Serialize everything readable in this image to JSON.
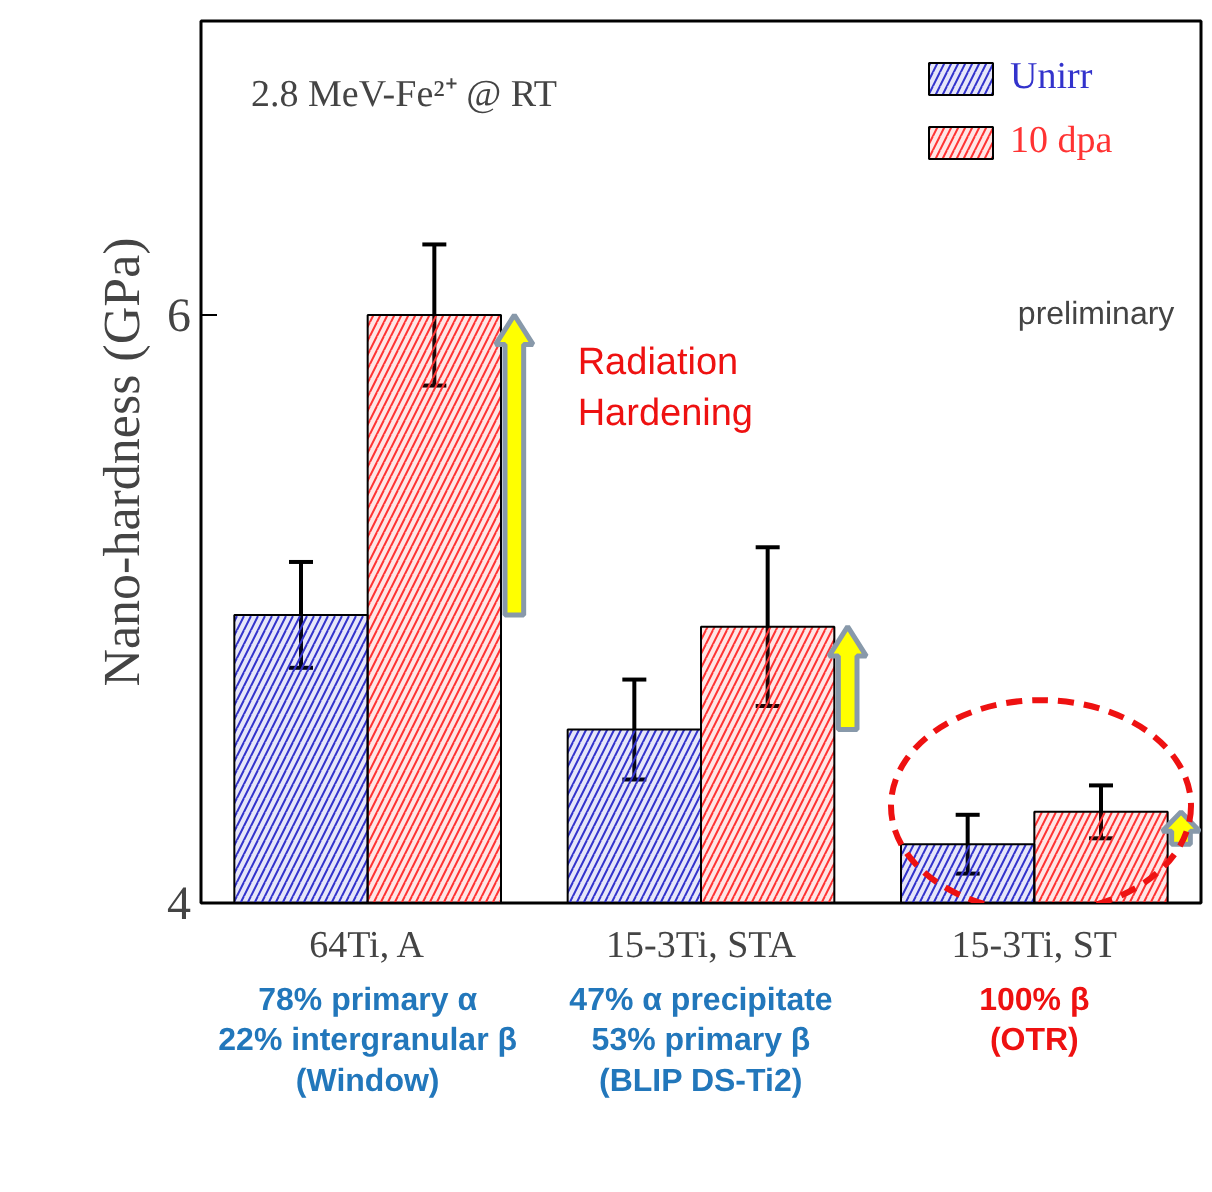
{
  "chart_data": {
    "type": "bar",
    "ylabel": "Nano-hardness (GPa)",
    "categories": [
      "64Ti, A",
      "15-3Ti, STA",
      "15-3Ti, ST"
    ],
    "series": [
      {
        "name": "Unirr",
        "color": "#3333cc",
        "values": [
          4.98,
          4.59,
          4.2
        ],
        "errors": [
          0.18,
          0.17,
          0.1
        ]
      },
      {
        "name": "10 dpa",
        "color": "#ff3333",
        "values": [
          6.0,
          4.94,
          4.31
        ],
        "errors": [
          0.24,
          0.27,
          0.09
        ]
      }
    ],
    "ylim": [
      4,
      7
    ],
    "yticks": [
      4,
      6
    ],
    "grid": false,
    "legend": "top right",
    "annotations": [
      "2.8 MeV-Fe²⁺ @ RT",
      "preliminary",
      "Radiation\nHardening",
      "78% primary α\n22% intergranular β\n(Window)",
      "47% α precipitate\n53% primary β\n(BLIP DS-Ti2)",
      "100% β\n(OTR)"
    ]
  }
}
